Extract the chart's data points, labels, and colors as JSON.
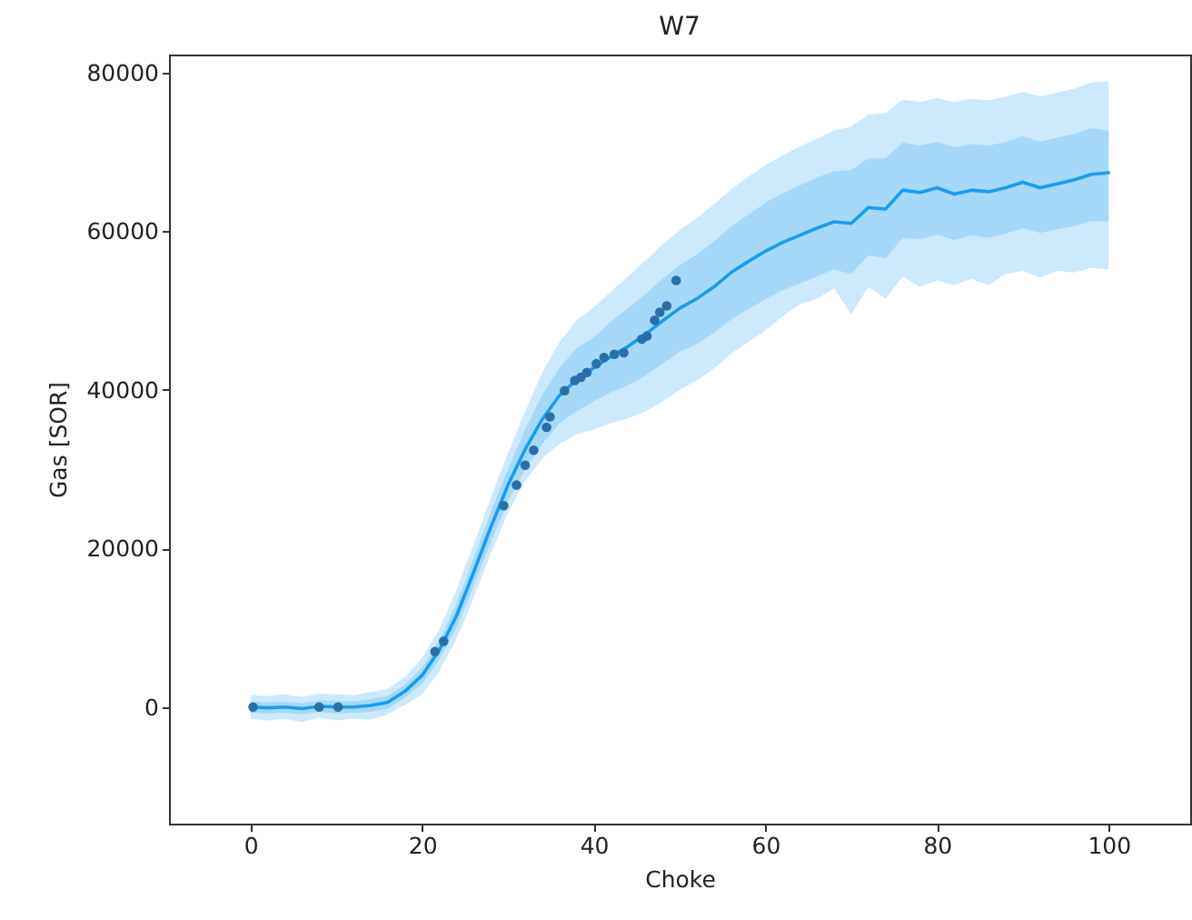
{
  "chart_data": {
    "type": "line",
    "title": "W7",
    "xlabel": "Choke",
    "ylabel": "Gas [SOR]",
    "xlim": [
      -9.5,
      109.5
    ],
    "ylim": [
      -14700,
      82300
    ],
    "xticks": [
      0,
      20,
      40,
      60,
      80,
      100
    ],
    "yticks": [
      0,
      20000,
      40000,
      60000,
      80000
    ],
    "grid": false,
    "line_style": "solid",
    "x": [
      0,
      2,
      4,
      6,
      8,
      10,
      12,
      14,
      16,
      18,
      20,
      22,
      24,
      26,
      28,
      30,
      32,
      34,
      36,
      38,
      40,
      42,
      44,
      46,
      48,
      50,
      52,
      54,
      56,
      58,
      60,
      62,
      64,
      66,
      68,
      70,
      72,
      74,
      76,
      78,
      80,
      82,
      84,
      86,
      88,
      90,
      92,
      94,
      96,
      98,
      100
    ],
    "series": [
      {
        "color": "#1a9bf0",
        "values": [
          null,
          null,
          null,
          null,
          null,
          null,
          null,
          null,
          null,
          null,
          null,
          null,
          null,
          null,
          null,
          null,
          null,
          null,
          null,
          null,
          null,
          null,
          null,
          null,
          null,
          null,
          null,
          null,
          null,
          null,
          null,
          null,
          null,
          null,
          null,
          null,
          null,
          null,
          null,
          null,
          null,
          null,
          null,
          null,
          null,
          null,
          null,
          null,
          null,
          null,
          null
        ],
        "lower": [
          -1500,
          -1700,
          -1500,
          -1900,
          -1300,
          -1700,
          -1500,
          -1600,
          -900,
          300,
          1600,
          4500,
          8600,
          13800,
          19400,
          24500,
          28500,
          31300,
          33200,
          34400,
          35000,
          35800,
          36400,
          37300,
          38500,
          40000,
          41200,
          42700,
          44600,
          46000,
          47500,
          49300,
          50800,
          51500,
          52800,
          49500,
          53000,
          51500,
          54300,
          53000,
          53800,
          53200,
          54000,
          53200,
          54600,
          55000,
          54200,
          55000,
          54800,
          55400,
          55200
        ],
        "upper": [
          1500,
          1400,
          1600,
          1300,
          1700,
          1600,
          1500,
          1900,
          2300,
          3800,
          6200,
          9800,
          14800,
          20500,
          26400,
          32000,
          37300,
          42200,
          46000,
          48800,
          50400,
          52400,
          54300,
          56300,
          58300,
          60100,
          61700,
          63400,
          65300,
          66900,
          68300,
          69600,
          70700,
          71700,
          72700,
          73200,
          74700,
          74900,
          76600,
          76300,
          76800,
          76300,
          76700,
          76500,
          77000,
          77600,
          77000,
          77500,
          78000,
          78800,
          78900
        ]
      },
      {
        "color": "#1a9bf0",
        "values": [
          0,
          -100,
          0,
          -200,
          100,
          0,
          0,
          200,
          600,
          2000,
          4000,
          7200,
          11500,
          17000,
          22700,
          28000,
          32500,
          36300,
          39300,
          41300,
          42800,
          44200,
          45500,
          47000,
          48700,
          50300,
          51500,
          53000,
          54800,
          56200,
          57500,
          58600,
          59500,
          60400,
          61200,
          61000,
          63000,
          62800,
          65200,
          64900,
          65500,
          64700,
          65200,
          65000,
          65500,
          66200,
          65500,
          66000,
          66500,
          67200,
          67400
        ],
        "lower": [
          -700,
          -800,
          -700,
          -900,
          -600,
          -800,
          -700,
          -600,
          -200,
          1200,
          3000,
          6000,
          10000,
          15300,
          20800,
          26000,
          30000,
          33200,
          35800,
          37300,
          38600,
          39700,
          40600,
          41800,
          43300,
          44800,
          45800,
          47200,
          48900,
          50200,
          51400,
          52600,
          53400,
          54300,
          55200,
          54600,
          57000,
          56600,
          59200,
          59000,
          59600,
          58900,
          59500,
          59200,
          59700,
          60400,
          59800,
          60300,
          60700,
          61300,
          61300
        ],
        "upper": [
          700,
          600,
          700,
          500,
          800,
          800,
          700,
          1000,
          1400,
          2800,
          5000,
          8400,
          13000,
          18700,
          24600,
          30000,
          35000,
          39400,
          42800,
          45300,
          46600,
          48600,
          50300,
          52100,
          54000,
          55700,
          57100,
          58700,
          60600,
          62100,
          63600,
          64800,
          65800,
          66800,
          67600,
          67700,
          69200,
          69200,
          71200,
          70800,
          71300,
          70600,
          71000,
          70800,
          71300,
          72000,
          71300,
          71800,
          72300,
          73000,
          72700
        ]
      },
      {
        "type": "scatter",
        "marker": "circle",
        "color": "#2a6fa8",
        "x": [
          0.3,
          8.0,
          10.2,
          21.5,
          22.5,
          29.5,
          31.0,
          32.0,
          33.0,
          34.5,
          34.9,
          36.6,
          37.8,
          38.5,
          39.2,
          40.3,
          41.2,
          42.4,
          43.5,
          45.6,
          46.2,
          47.1,
          47.7,
          48.5,
          49.6
        ],
        "values": [
          0,
          0,
          0,
          7000,
          8300,
          25400,
          28000,
          30500,
          32400,
          35300,
          36600,
          39900,
          41200,
          41600,
          42200,
          43300,
          44100,
          44500,
          44700,
          46400,
          46800,
          48800,
          49800,
          50600,
          53800
        ]
      }
    ]
  }
}
